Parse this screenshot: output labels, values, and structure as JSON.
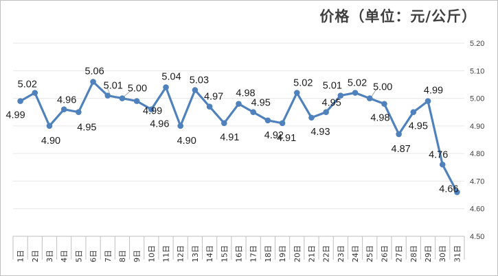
{
  "chart_data": {
    "type": "line",
    "title": "价格（单位：元/公斤）",
    "xlabel": "",
    "ylabel": "",
    "x": [
      "1日",
      "2日",
      "3日",
      "4日",
      "5日",
      "6日",
      "7日",
      "8日",
      "9日",
      "10日",
      "11日",
      "12日",
      "13日",
      "14日",
      "15日",
      "16日",
      "17日",
      "18日",
      "19日",
      "20日",
      "21日",
      "22日",
      "23日",
      "24日",
      "25日",
      "26日",
      "27日",
      "28日",
      "29日",
      "30日",
      "31日"
    ],
    "series": [
      {
        "values": [
          4.99,
          5.02,
          4.9,
          4.96,
          4.95,
          5.06,
          5.01,
          5.0,
          4.99,
          4.96,
          5.04,
          4.9,
          5.03,
          4.97,
          4.91,
          4.98,
          4.95,
          4.92,
          4.91,
          5.02,
          4.93,
          4.95,
          5.01,
          5.02,
          5.0,
          4.98,
          4.87,
          4.95,
          4.99,
          4.76,
          4.66
        ]
      }
    ],
    "data_labels": [
      "4.99",
      "5.02",
      "4.90",
      "4.96",
      "4.95",
      "5.06",
      "5.01",
      "5.00",
      "4.99",
      "4.96",
      "5.04",
      "4.90",
      "5.03",
      "4.97",
      "4.91",
      "4.98",
      "4.95",
      "4.92",
      "4.91",
      "5.02",
      "4.93",
      "4.95",
      "5.01",
      "5.02",
      "5.00",
      "4.98",
      "4.87",
      "4.95",
      "4.99",
      "4.76",
      "4.66"
    ],
    "yticks": [
      "4.50",
      "4.60",
      "4.70",
      "4.80",
      "4.90",
      "5.00",
      "5.10",
      "5.20"
    ],
    "ylim": [
      4.5,
      5.2
    ],
    "y_axis_side": "right",
    "grid": true,
    "legend": "none",
    "colors": {
      "line": "#4f81bd",
      "marker": "#4f81bd"
    }
  }
}
